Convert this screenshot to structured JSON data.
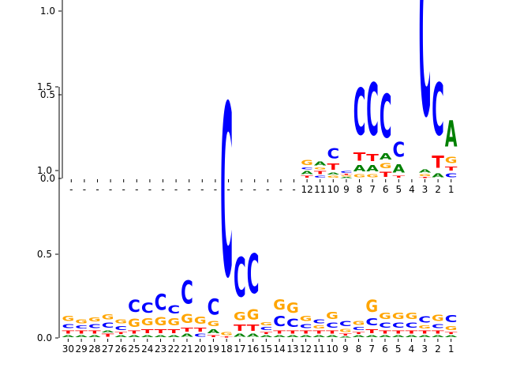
{
  "chart_data": [
    {
      "type": "sequence-logo",
      "ylim": [
        0,
        1.75
      ],
      "yticks": [
        0.0,
        0.5,
        1.0,
        1.5
      ],
      "ytick_labels": [
        "0.0",
        "0.5",
        "1.0",
        "1.5"
      ],
      "positions": [
        "-",
        "-",
        "-",
        "-",
        "-",
        "-",
        "-",
        "-",
        "-",
        "-",
        "-",
        "-",
        "-",
        "-",
        "-",
        "-",
        "-",
        "-",
        "12",
        "11",
        "10",
        "9",
        "8",
        "7",
        "6",
        "5",
        "4",
        "3",
        "2",
        "1"
      ],
      "colors": {
        "A": "#008000",
        "C": "#0000ff",
        "G": "#ffa500",
        "T": "#ff0000"
      },
      "columns": [
        [],
        [],
        [],
        [],
        [],
        [],
        [],
        [],
        [],
        [],
        [],
        [],
        [],
        [],
        [],
        [],
        [],
        [],
        [
          [
            "T",
            0.02
          ],
          [
            "A",
            0.03
          ],
          [
            "C",
            0.02
          ],
          [
            "G",
            0.05
          ]
        ],
        [
          [
            "C",
            0.02
          ],
          [
            "T",
            0.03
          ],
          [
            "G",
            0.02
          ],
          [
            "A",
            0.04
          ]
        ],
        [
          [
            "G",
            0.02
          ],
          [
            "A",
            0.02
          ],
          [
            "T",
            0.06
          ],
          [
            "C",
            0.1
          ]
        ],
        [
          [
            "A",
            0.01
          ],
          [
            "G",
            0.01
          ],
          [
            "T",
            0.01
          ],
          [
            "C",
            0.02
          ]
        ],
        [
          [
            "G",
            0.03
          ],
          [
            "A",
            0.06
          ],
          [
            "T",
            0.08
          ],
          [
            "C",
            0.45
          ]
        ],
        [
          [
            "G",
            0.03
          ],
          [
            "A",
            0.06
          ],
          [
            "T",
            0.07
          ],
          [
            "C",
            0.5
          ]
        ],
        [
          [
            "T",
            0.05
          ],
          [
            "G",
            0.05
          ],
          [
            "A",
            0.06
          ],
          [
            "C",
            0.42
          ]
        ],
        [
          [
            "T",
            0.02
          ],
          [
            "A",
            0.08
          ],
          [
            "C",
            0.14
          ]
        ],
        [],
        [
          [
            "T",
            0.01
          ],
          [
            "G",
            0.02
          ],
          [
            "A",
            0.03
          ],
          [
            "C",
            1.58
          ]
        ],
        [
          [
            "A",
            0.04
          ],
          [
            "T",
            0.12
          ],
          [
            "C",
            0.5
          ]
        ],
        [
          [
            "C",
            0.04
          ],
          [
            "T",
            0.04
          ],
          [
            "G",
            0.06
          ],
          [
            "A",
            0.25
          ]
        ]
      ]
    },
    {
      "type": "sequence-logo",
      "ylim": [
        0,
        1.75
      ],
      "yticks": [
        0.0,
        0.5,
        1.0,
        1.5
      ],
      "ytick_labels": [
        "0.0",
        "0.5",
        "1.0",
        "1.5"
      ],
      "positions": [
        "30",
        "29",
        "28",
        "27",
        "26",
        "25",
        "24",
        "23",
        "22",
        "21",
        "20",
        "19",
        "18",
        "17",
        "16",
        "15",
        "14",
        "13",
        "12",
        "11",
        "10",
        "9",
        "8",
        "7",
        "6",
        "5",
        "4",
        "3",
        "2",
        "1"
      ],
      "colors": {
        "A": "#008000",
        "C": "#0000ff",
        "G": "#ffa500",
        "T": "#ff0000"
      },
      "columns": [
        [
          [
            "A",
            0.02
          ],
          [
            "T",
            0.03
          ],
          [
            "C",
            0.04
          ],
          [
            "G",
            0.05
          ]
        ],
        [
          [
            "A",
            0.02
          ],
          [
            "T",
            0.03
          ],
          [
            "C",
            0.03
          ],
          [
            "G",
            0.04
          ]
        ],
        [
          [
            "A",
            0.02
          ],
          [
            "T",
            0.03
          ],
          [
            "C",
            0.04
          ],
          [
            "G",
            0.04
          ]
        ],
        [
          [
            "T",
            0.03
          ],
          [
            "A",
            0.02
          ],
          [
            "C",
            0.05
          ],
          [
            "G",
            0.05
          ]
        ],
        [
          [
            "A",
            0.02
          ],
          [
            "T",
            0.02
          ],
          [
            "C",
            0.04
          ],
          [
            "G",
            0.04
          ]
        ],
        [
          [
            "A",
            0.02
          ],
          [
            "T",
            0.03
          ],
          [
            "G",
            0.08
          ],
          [
            "C",
            0.12
          ]
        ],
        [
          [
            "A",
            0.02
          ],
          [
            "T",
            0.04
          ],
          [
            "G",
            0.07
          ],
          [
            "C",
            0.1
          ]
        ],
        [
          [
            "A",
            0.02
          ],
          [
            "T",
            0.04
          ],
          [
            "G",
            0.08
          ],
          [
            "C",
            0.15
          ]
        ],
        [
          [
            "A",
            0.02
          ],
          [
            "T",
            0.04
          ],
          [
            "G",
            0.07
          ],
          [
            "C",
            0.08
          ]
        ],
        [
          [
            "A",
            0.03
          ],
          [
            "T",
            0.04
          ],
          [
            "G",
            0.09
          ],
          [
            "C",
            0.22
          ]
        ],
        [
          [
            "C",
            0.03
          ],
          [
            "T",
            0.04
          ],
          [
            "G",
            0.07
          ]
        ],
        [
          [
            "T",
            0.02
          ],
          [
            "A",
            0.04
          ],
          [
            "G",
            0.05
          ],
          [
            "C",
            0.15
          ]
        ],
        [
          [
            "T",
            0.01
          ],
          [
            "G",
            0.03
          ],
          [
            "C",
            1.65
          ]
        ],
        [
          [
            "A",
            0.03
          ],
          [
            "T",
            0.06
          ],
          [
            "G",
            0.08
          ],
          [
            "C",
            0.38
          ]
        ],
        [
          [
            "A",
            0.03
          ],
          [
            "T",
            0.06
          ],
          [
            "G",
            0.1
          ],
          [
            "C",
            0.38
          ]
        ],
        [
          [
            "A",
            0.02
          ],
          [
            "T",
            0.02
          ],
          [
            "C",
            0.03
          ],
          [
            "G",
            0.03
          ]
        ],
        [
          [
            "A",
            0.02
          ],
          [
            "T",
            0.03
          ],
          [
            "C",
            0.1
          ],
          [
            "G",
            0.1
          ]
        ],
        [
          [
            "A",
            0.02
          ],
          [
            "T",
            0.03
          ],
          [
            "C",
            0.08
          ],
          [
            "G",
            0.1
          ]
        ],
        [
          [
            "A",
            0.02
          ],
          [
            "T",
            0.03
          ],
          [
            "C",
            0.04
          ],
          [
            "G",
            0.05
          ]
        ],
        [
          [
            "A",
            0.02
          ],
          [
            "T",
            0.03
          ],
          [
            "G",
            0.03
          ],
          [
            "C",
            0.04
          ]
        ],
        [
          [
            "A",
            0.02
          ],
          [
            "T",
            0.03
          ],
          [
            "C",
            0.05
          ],
          [
            "G",
            0.07
          ]
        ],
        [
          [
            "A",
            0.01
          ],
          [
            "T",
            0.02
          ],
          [
            "G",
            0.03
          ],
          [
            "C",
            0.05
          ]
        ],
        [
          [
            "A",
            0.02
          ],
          [
            "T",
            0.02
          ],
          [
            "C",
            0.03
          ],
          [
            "G",
            0.04
          ]
        ],
        [
          [
            "A",
            0.02
          ],
          [
            "T",
            0.04
          ],
          [
            "C",
            0.07
          ],
          [
            "G",
            0.12
          ]
        ],
        [
          [
            "A",
            0.02
          ],
          [
            "T",
            0.03
          ],
          [
            "C",
            0.05
          ],
          [
            "G",
            0.06
          ]
        ],
        [
          [
            "A",
            0.02
          ],
          [
            "T",
            0.03
          ],
          [
            "C",
            0.05
          ],
          [
            "G",
            0.06
          ]
        ],
        [
          [
            "A",
            0.02
          ],
          [
            "T",
            0.03
          ],
          [
            "C",
            0.05
          ],
          [
            "G",
            0.06
          ]
        ],
        [
          [
            "A",
            0.02
          ],
          [
            "T",
            0.03
          ],
          [
            "G",
            0.03
          ],
          [
            "C",
            0.06
          ]
        ],
        [
          [
            "A",
            0.02
          ],
          [
            "T",
            0.03
          ],
          [
            "C",
            0.04
          ],
          [
            "G",
            0.06
          ]
        ],
        [
          [
            "A",
            0.02
          ],
          [
            "T",
            0.02
          ],
          [
            "G",
            0.04
          ],
          [
            "C",
            0.07
          ]
        ]
      ]
    }
  ]
}
